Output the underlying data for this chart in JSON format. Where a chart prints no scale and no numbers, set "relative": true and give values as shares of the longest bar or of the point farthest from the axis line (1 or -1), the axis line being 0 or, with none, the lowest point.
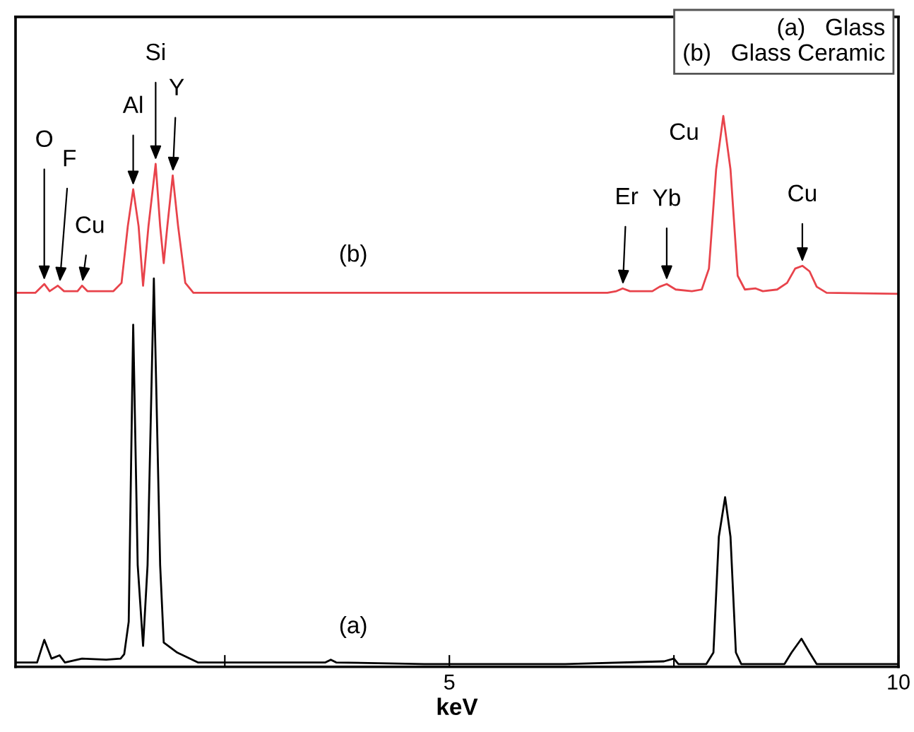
{
  "chart_data": {
    "type": "line",
    "relative": true,
    "xlabel": "keV",
    "xlim": [
      0.17,
      10
    ],
    "xticks": [
      {
        "value": 2.5,
        "label": null
      },
      5,
      {
        "value": 7.5,
        "label": null
      },
      10
    ],
    "x": [
      0.17,
      0.41,
      0.49,
      0.57,
      0.66,
      0.72,
      0.91,
      1.18,
      1.34,
      1.38,
      1.43,
      1.48,
      1.53,
      1.59,
      1.64,
      1.71,
      1.78,
      1.82,
      1.97,
      2.2,
      3.62,
      3.68,
      3.74,
      4.72,
      6.29,
      7.39,
      7.5,
      7.55,
      7.86,
      7.94,
      8.0,
      8.07,
      8.13,
      8.19,
      8.25,
      8.73,
      8.81,
      8.92,
      9.01,
      9.09,
      10.0
    ],
    "series": [
      {
        "color": "#000000",
        "values": [
          0.008,
          0.008,
          0.049,
          0.015,
          0.021,
          0.008,
          0.015,
          0.013,
          0.015,
          0.023,
          0.082,
          0.621,
          0.185,
          0.038,
          0.185,
          0.705,
          0.185,
          0.044,
          0.026,
          0.008,
          0.008,
          0.013,
          0.008,
          0.005,
          0.005,
          0.01,
          0.015,
          0.005,
          0.005,
          0.026,
          0.236,
          0.308,
          0.236,
          0.026,
          0.005,
          0.005,
          0.026,
          0.051,
          0.026,
          0.005,
          0.005
        ]
      },
      {
        "color": "#e8434b",
        "x": [
          0.17,
          0.39,
          0.49,
          0.55,
          0.64,
          0.71,
          0.86,
          0.91,
          0.97,
          1.26,
          1.35,
          1.42,
          1.48,
          1.54,
          1.59,
          1.65,
          1.73,
          1.78,
          1.82,
          1.86,
          1.92,
          1.98,
          2.06,
          2.15,
          4.72,
          6.76,
          6.86,
          6.93,
          7.01,
          7.26,
          7.34,
          7.42,
          7.52,
          7.7,
          7.81,
          7.89,
          7.97,
          8.05,
          8.13,
          8.21,
          8.29,
          8.41,
          8.49,
          8.65,
          8.76,
          8.85,
          8.93,
          9.01,
          9.09,
          9.2,
          10.0
        ],
        "values": [
          0.679,
          0.679,
          0.695,
          0.682,
          0.692,
          0.682,
          0.682,
          0.692,
          0.682,
          0.682,
          0.697,
          0.8,
          0.867,
          0.8,
          0.692,
          0.8,
          0.913,
          0.8,
          0.733,
          0.8,
          0.892,
          0.8,
          0.697,
          0.679,
          0.679,
          0.679,
          0.682,
          0.687,
          0.682,
          0.682,
          0.69,
          0.695,
          0.685,
          0.682,
          0.685,
          0.723,
          0.903,
          1.0,
          0.903,
          0.71,
          0.685,
          0.687,
          0.682,
          0.685,
          0.697,
          0.723,
          0.728,
          0.718,
          0.69,
          0.679,
          0.677
        ]
      }
    ],
    "annotations": [
      {
        "text": "O",
        "x": 0.49,
        "y": 0.695
      },
      {
        "text": "F",
        "x": 0.66,
        "y": 0.692
      },
      {
        "text": "Cu",
        "x": 0.91,
        "y": 0.692
      },
      {
        "text": "Al",
        "x": 1.48,
        "y": 0.867
      },
      {
        "text": "Si",
        "x": 1.73,
        "y": 0.913
      },
      {
        "text": "Y",
        "x": 1.92,
        "y": 0.892
      },
      {
        "text": "Er",
        "x": 6.93,
        "y": 0.687
      },
      {
        "text": "Yb",
        "x": 7.42,
        "y": 0.695
      },
      {
        "text": "Cu",
        "x": 8.05,
        "y": 1.0
      },
      {
        "text": "Cu",
        "x": 8.93,
        "y": 0.728
      },
      {
        "text": "(b)",
        "x": 3.93,
        "y": 0.679
      },
      {
        "text": "(a)",
        "x": 3.93,
        "y": 0.008
      },
      "(a)   Glass",
      "(b)   Glass Ceramic"
    ]
  }
}
